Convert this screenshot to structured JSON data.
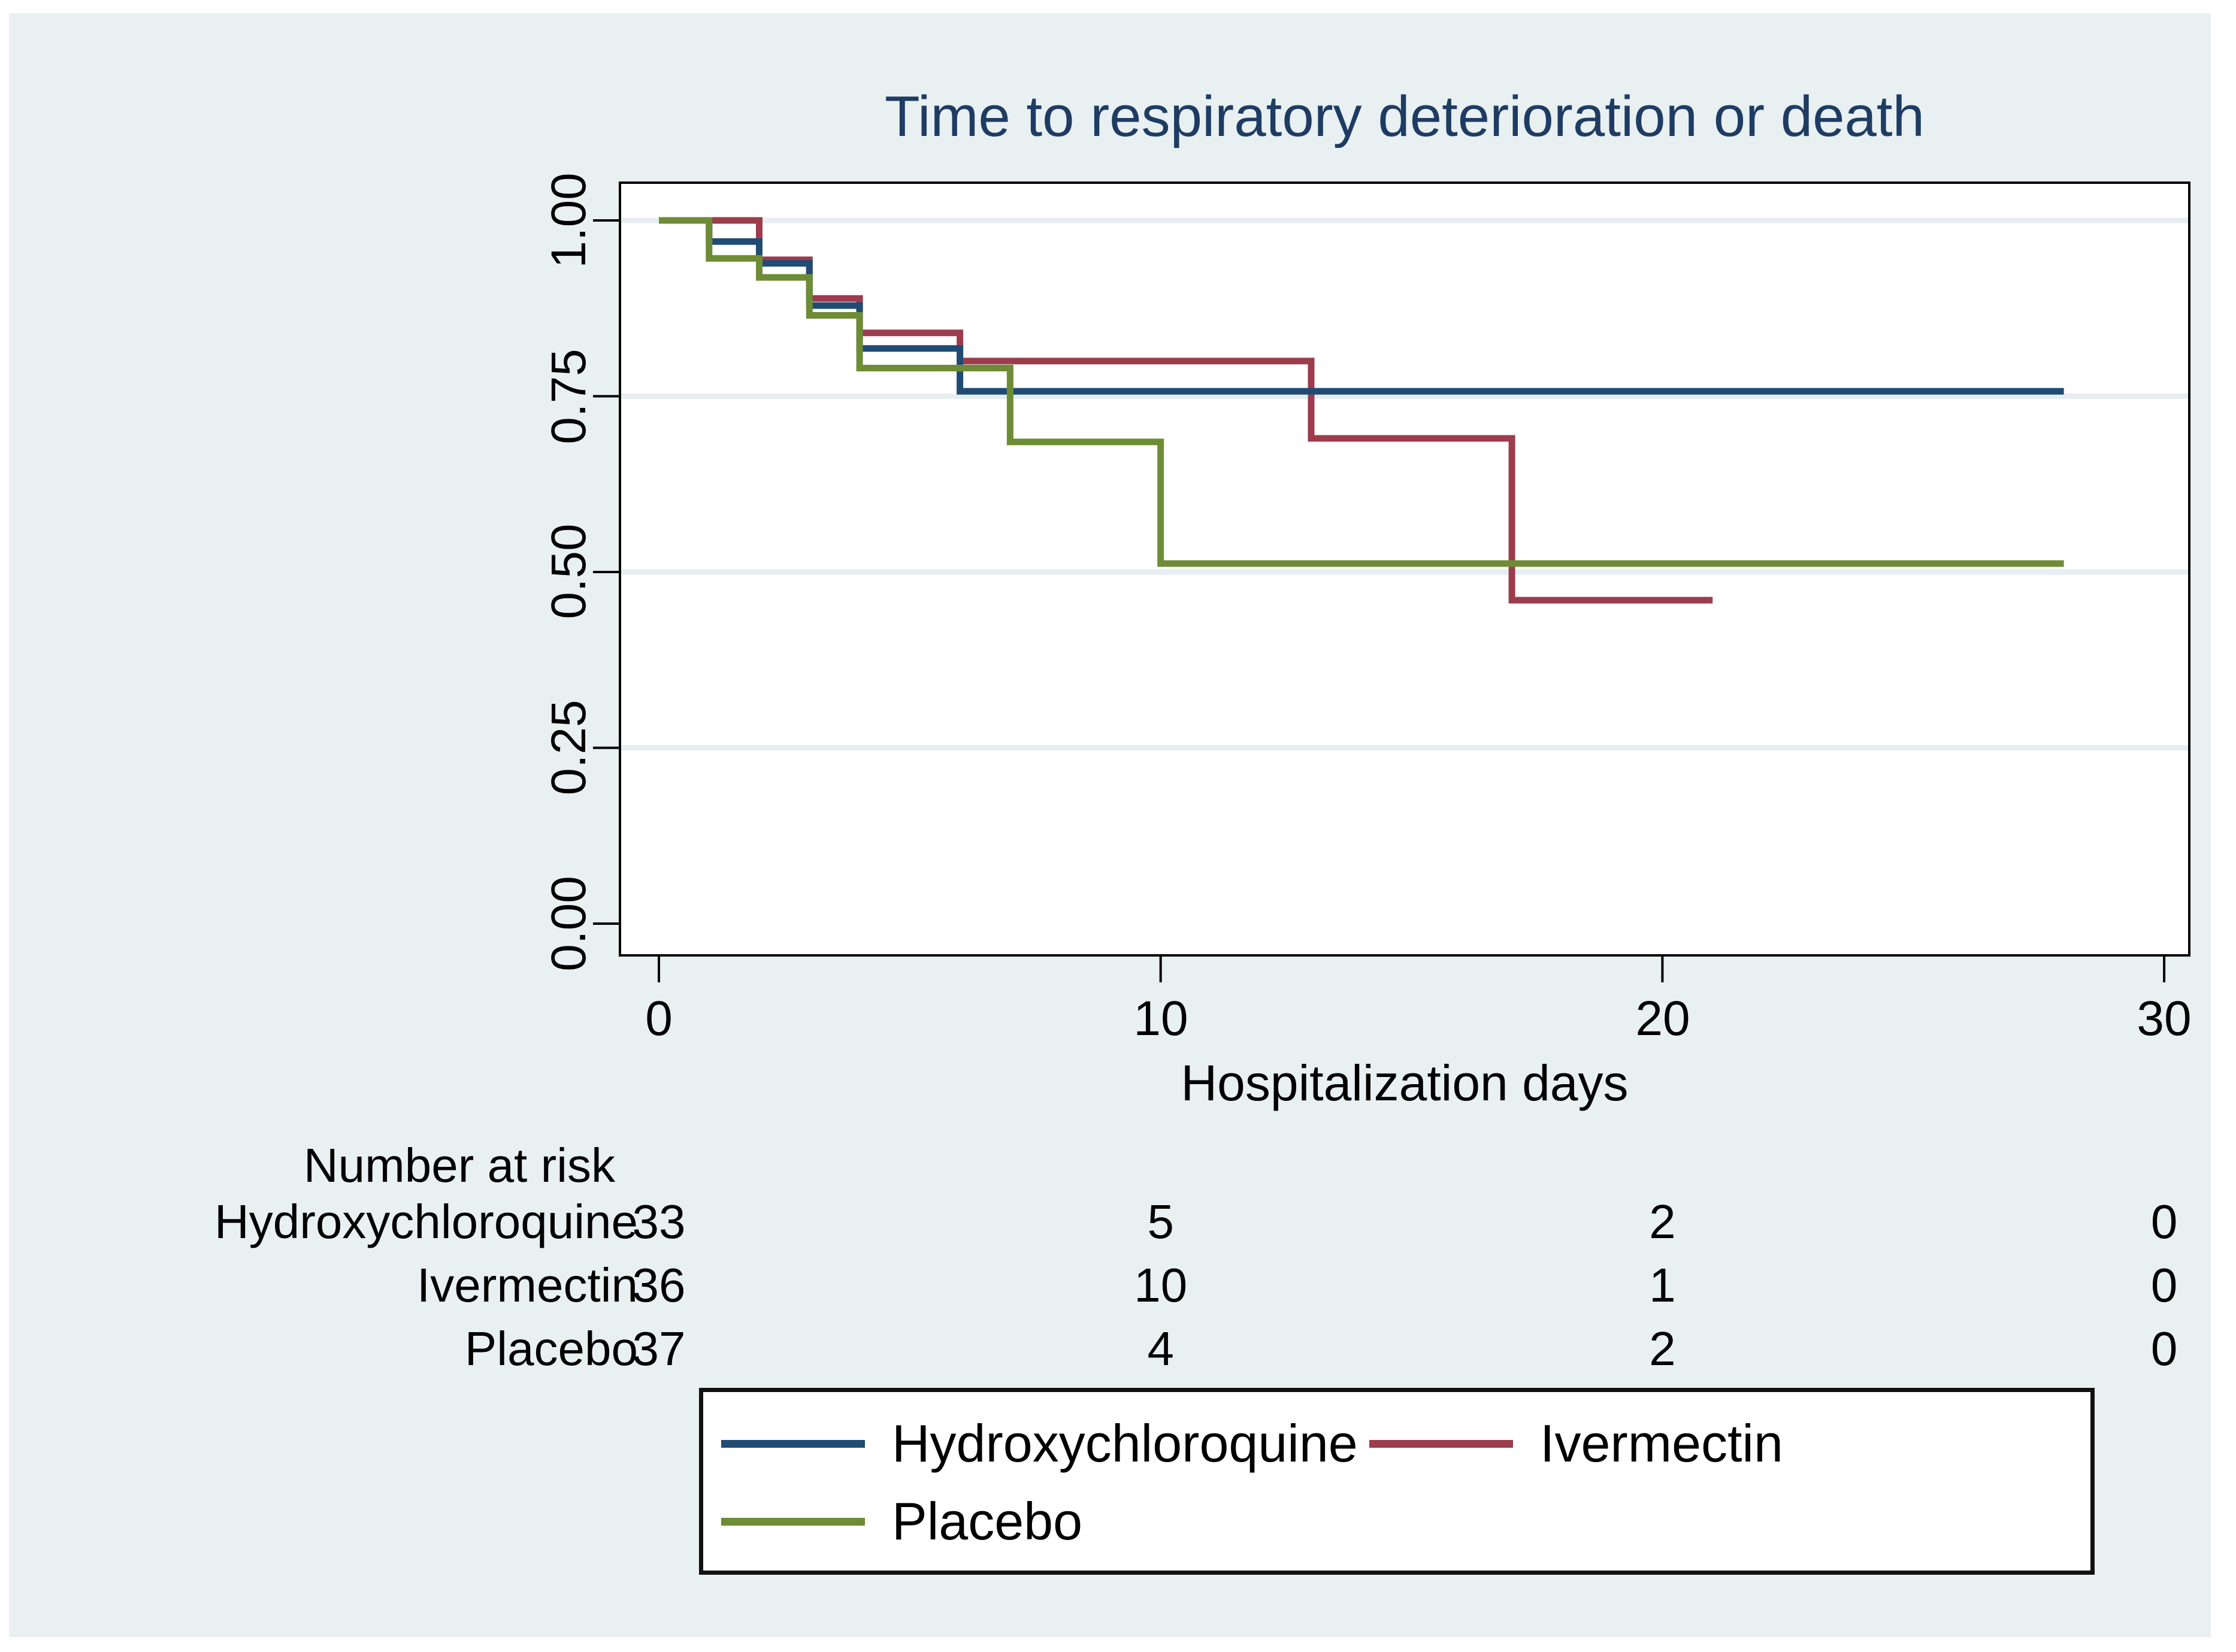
{
  "figure": {
    "background": "#ffffff",
    "region_background": "#e9f0f2",
    "plot_background": "#ffffff",
    "grid_color": "#e6eef1",
    "title_color": "#1e3c63",
    "axis_color": "#000000"
  },
  "chart_data": {
    "type": "line",
    "subtype": "kaplan-meier-step-survival",
    "title": "Time to respiratory deterioration or death",
    "xlabel": "Hospitalization days",
    "ylabel": "",
    "xlim": [
      0,
      30
    ],
    "ylim": [
      0.0,
      1.0
    ],
    "xticks": [
      0,
      10,
      20,
      30
    ],
    "ytick_labels": [
      "1.00",
      "0.75",
      "0.50",
      "0.25",
      "0.00"
    ],
    "ytick_values": [
      1.0,
      0.75,
      0.5,
      0.25,
      0.0
    ],
    "grid": "horizontal",
    "legend_position": "bottom",
    "series": [
      {
        "name": "Ivermectin",
        "color": "#9d3c4c",
        "points": [
          [
            0,
            1.0
          ],
          [
            2,
            1.0
          ],
          [
            2,
            0.944
          ],
          [
            3,
            0.944
          ],
          [
            3,
            0.889
          ],
          [
            4,
            0.889
          ],
          [
            4,
            0.84
          ],
          [
            6,
            0.84
          ],
          [
            6,
            0.8
          ],
          [
            13,
            0.8
          ],
          [
            13,
            0.69
          ],
          [
            17,
            0.69
          ],
          [
            17,
            0.46
          ],
          [
            21,
            0.46
          ]
        ]
      },
      {
        "name": "Hydroxychloroquine",
        "color": "#204c74",
        "points": [
          [
            0,
            1.0
          ],
          [
            1,
            1.0
          ],
          [
            1,
            0.97
          ],
          [
            2,
            0.97
          ],
          [
            2,
            0.939
          ],
          [
            3,
            0.939
          ],
          [
            3,
            0.879
          ],
          [
            4,
            0.879
          ],
          [
            4,
            0.818
          ],
          [
            6,
            0.818
          ],
          [
            6,
            0.757
          ],
          [
            28,
            0.757
          ]
        ]
      },
      {
        "name": "Placebo",
        "color": "#6e8c36",
        "points": [
          [
            0,
            1.0
          ],
          [
            1,
            1.0
          ],
          [
            1,
            0.946
          ],
          [
            2,
            0.946
          ],
          [
            2,
            0.919
          ],
          [
            3,
            0.919
          ],
          [
            3,
            0.865
          ],
          [
            4,
            0.865
          ],
          [
            4,
            0.79
          ],
          [
            7,
            0.79
          ],
          [
            7,
            0.685
          ],
          [
            10,
            0.685
          ],
          [
            10,
            0.512
          ],
          [
            28,
            0.512
          ]
        ]
      }
    ]
  },
  "risk_table": {
    "header": "Number at risk",
    "time_points": [
      0,
      10,
      20,
      30
    ],
    "rows": [
      {
        "label": "Hydroxychloroquine",
        "values": [
          33,
          5,
          2,
          0
        ]
      },
      {
        "label": "Ivermectin",
        "values": [
          36,
          10,
          1,
          0
        ]
      },
      {
        "label": "Placebo",
        "values": [
          37,
          4,
          2,
          0
        ]
      }
    ]
  },
  "legend": {
    "items": [
      {
        "label": "Hydroxychloroquine",
        "color": "#204c74"
      },
      {
        "label": "Ivermectin",
        "color": "#9d3c4c"
      },
      {
        "label": "Placebo",
        "color": "#6e8c36"
      }
    ]
  }
}
